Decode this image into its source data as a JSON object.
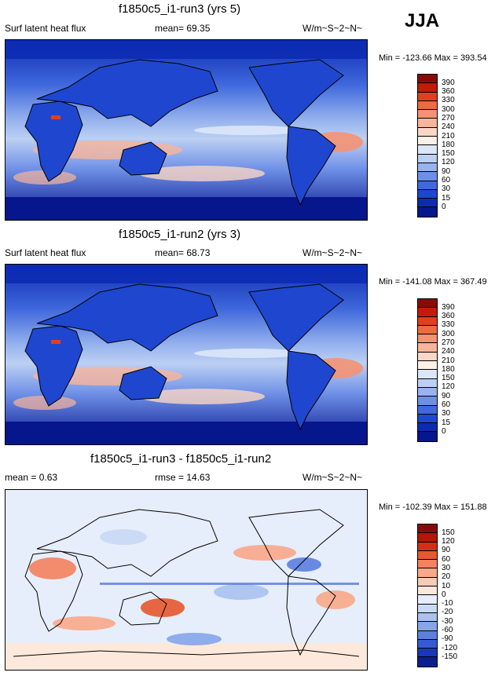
{
  "season": "JJA",
  "panels": [
    {
      "title": "f1850c5_i1-run3 (yrs 5)",
      "left": "Surf latent heat flux",
      "mid": "mean=  69.35",
      "units": "W/m~S~2~N~",
      "minmax": "Min = -123.66 Max = 393.54",
      "legend_levels": [
        "390",
        "360",
        "330",
        "300",
        "270",
        "240",
        "210",
        "180",
        "150",
        "120",
        "90",
        "60",
        "30",
        "15",
        "0"
      ]
    },
    {
      "title": "f1850c5_i1-run2 (yrs 3)",
      "left": "Surf latent heat flux",
      "mid": "mean=  68.73",
      "units": "W/m~S~2~N~",
      "minmax": "Min = -141.08 Max = 367.49",
      "legend_levels": [
        "390",
        "360",
        "330",
        "300",
        "270",
        "240",
        "210",
        "180",
        "150",
        "120",
        "90",
        "60",
        "30",
        "15",
        "0"
      ]
    },
    {
      "title": "f1850c5_i1-run3 - f1850c5_i1-run2",
      "left": "mean =   0.63",
      "mid": "rmse =  14.63",
      "units": "W/m~S~2~N~",
      "minmax": "Min = -102.39 Max = 151.88",
      "legend_levels": [
        "150",
        "120",
        "90",
        "60",
        "30",
        "20",
        "10",
        "0",
        "-10",
        "-20",
        "-30",
        "-60",
        "-90",
        "-120",
        "-150"
      ]
    }
  ],
  "colors": {
    "abs_scale": [
      "#8a0a0a",
      "#c31a0c",
      "#e0401e",
      "#ef6a3e",
      "#f59273",
      "#f7b59b",
      "#fad6c4",
      "#fdf0e6",
      "#dbe7f8",
      "#bcd0f3",
      "#98b4ee",
      "#6e8fe6",
      "#4069dc",
      "#1f46cf",
      "#0c2bb3",
      "#06168d"
    ],
    "diff_scale": [
      "#8a0a0a",
      "#b41608",
      "#d32f16",
      "#e8582e",
      "#f5825e",
      "#f9a88a",
      "#fccbb5",
      "#fde9dc",
      "#e6eefb",
      "#c9daf6",
      "#a9c2f0",
      "#86a5ea",
      "#5c80e1",
      "#355bd4",
      "#1a37b8",
      "#0b1e8e"
    ]
  }
}
